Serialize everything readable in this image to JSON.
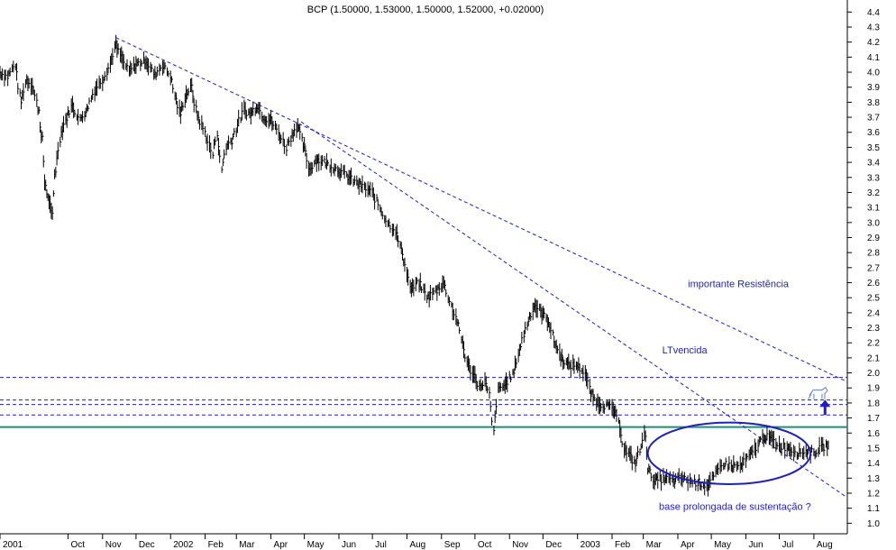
{
  "chart_data": {
    "type": "line",
    "title": "BCP (1.50000, 1.53000, 1.50000, 1.52000, +0.02000)",
    "xlabel": "",
    "ylabel": "",
    "grid": false,
    "y_axis_side": "right",
    "ylim": [
      0.93,
      4.48
    ],
    "yticks": [
      1.0,
      1.1,
      1.2,
      1.3,
      1.4,
      1.5,
      1.6,
      1.7,
      1.8,
      1.9,
      2.0,
      2.1,
      2.2,
      2.3,
      2.4,
      2.5,
      2.6,
      2.7,
      2.8,
      2.9,
      3.0,
      3.1,
      3.2,
      3.3,
      3.4,
      3.5,
      3.6,
      3.7,
      3.8,
      3.9,
      4.0,
      4.1,
      4.2,
      4.3,
      4.4
    ],
    "xlim": [
      "2001-08-01",
      "2003-08-31"
    ],
    "xticks": [
      {
        "label": "2001",
        "date": "2001-08-01"
      },
      {
        "label": "Oct",
        "date": "2001-10-01"
      },
      {
        "label": "Nov",
        "date": "2001-11-01"
      },
      {
        "label": "Dec",
        "date": "2001-12-01"
      },
      {
        "label": "2002",
        "date": "2002-01-01"
      },
      {
        "label": "Feb",
        "date": "2002-02-01"
      },
      {
        "label": "Mar",
        "date": "2002-03-01"
      },
      {
        "label": "Apr",
        "date": "2002-04-01"
      },
      {
        "label": "May",
        "date": "2002-05-01"
      },
      {
        "label": "Jun",
        "date": "2002-06-01"
      },
      {
        "label": "Jul",
        "date": "2002-07-01"
      },
      {
        "label": "Aug",
        "date": "2002-08-01"
      },
      {
        "label": "Sep",
        "date": "2002-09-01"
      },
      {
        "label": "Oct",
        "date": "2002-10-01"
      },
      {
        "label": "Nov",
        "date": "2002-11-01"
      },
      {
        "label": "Dec",
        "date": "2002-12-01"
      },
      {
        "label": "2003",
        "date": "2003-01-01"
      },
      {
        "label": "Feb",
        "date": "2003-02-01"
      },
      {
        "label": "Mar",
        "date": "2003-03-01"
      },
      {
        "label": "Apr",
        "date": "2003-04-01"
      },
      {
        "label": "May",
        "date": "2003-05-01"
      },
      {
        "label": "Jun",
        "date": "2003-06-01"
      },
      {
        "label": "Jul",
        "date": "2003-07-01"
      },
      {
        "label": "Aug",
        "date": "2003-08-01"
      }
    ],
    "series": [
      {
        "style": "ohlc-bars",
        "color": "#000000",
        "points": [
          [
            "2001-08-01",
            4.0
          ],
          [
            "2001-08-08",
            3.97
          ],
          [
            "2001-08-15",
            4.05
          ],
          [
            "2001-08-20",
            3.8
          ],
          [
            "2001-08-25",
            3.95
          ],
          [
            "2001-08-30",
            3.92
          ],
          [
            "2001-09-05",
            3.75
          ],
          [
            "2001-09-08",
            3.55
          ],
          [
            "2001-09-11",
            3.25
          ],
          [
            "2001-09-14",
            3.15
          ],
          [
            "2001-09-17",
            3.05
          ],
          [
            "2001-09-20",
            3.35
          ],
          [
            "2001-09-25",
            3.6
          ],
          [
            "2001-09-30",
            3.7
          ],
          [
            "2001-10-05",
            3.78
          ],
          [
            "2001-10-12",
            3.68
          ],
          [
            "2001-10-18",
            3.75
          ],
          [
            "2001-10-25",
            3.88
          ],
          [
            "2001-11-01",
            3.95
          ],
          [
            "2001-11-08",
            4.05
          ],
          [
            "2001-11-13",
            4.18
          ],
          [
            "2001-11-18",
            4.1
          ],
          [
            "2001-11-25",
            4.0
          ],
          [
            "2001-12-01",
            4.05
          ],
          [
            "2001-12-10",
            4.08
          ],
          [
            "2001-12-18",
            3.98
          ],
          [
            "2001-12-25",
            4.05
          ],
          [
            "2002-01-01",
            3.98
          ],
          [
            "2002-01-05",
            3.85
          ],
          [
            "2002-01-10",
            3.72
          ],
          [
            "2002-01-15",
            3.85
          ],
          [
            "2002-01-20",
            3.9
          ],
          [
            "2002-01-25",
            3.72
          ],
          [
            "2002-02-01",
            3.6
          ],
          [
            "2002-02-08",
            3.45
          ],
          [
            "2002-02-12",
            3.6
          ],
          [
            "2002-02-16",
            3.35
          ],
          [
            "2002-02-20",
            3.5
          ],
          [
            "2002-02-25",
            3.55
          ],
          [
            "2002-03-01",
            3.62
          ],
          [
            "2002-03-08",
            3.75
          ],
          [
            "2002-03-14",
            3.72
          ],
          [
            "2002-03-20",
            3.78
          ],
          [
            "2002-03-26",
            3.7
          ],
          [
            "2002-04-01",
            3.68
          ],
          [
            "2002-04-08",
            3.6
          ],
          [
            "2002-04-15",
            3.5
          ],
          [
            "2002-04-20",
            3.58
          ],
          [
            "2002-04-25",
            3.65
          ],
          [
            "2002-05-01",
            3.5
          ],
          [
            "2002-05-06",
            3.35
          ],
          [
            "2002-05-12",
            3.42
          ],
          [
            "2002-05-20",
            3.4
          ],
          [
            "2002-06-01",
            3.35
          ],
          [
            "2002-06-10",
            3.3
          ],
          [
            "2002-06-20",
            3.25
          ],
          [
            "2002-07-01",
            3.2
          ],
          [
            "2002-07-08",
            3.1
          ],
          [
            "2002-07-15",
            3.0
          ],
          [
            "2002-07-22",
            2.95
          ],
          [
            "2002-07-28",
            2.8
          ],
          [
            "2002-08-05",
            2.55
          ],
          [
            "2002-08-12",
            2.6
          ],
          [
            "2002-08-20",
            2.5
          ],
          [
            "2002-08-28",
            2.55
          ],
          [
            "2002-09-03",
            2.6
          ],
          [
            "2002-09-10",
            2.45
          ],
          [
            "2002-09-15",
            2.35
          ],
          [
            "2002-09-20",
            2.2
          ],
          [
            "2002-09-25",
            2.05
          ],
          [
            "2002-10-01",
            1.98
          ],
          [
            "2002-10-06",
            1.9
          ],
          [
            "2002-10-10",
            1.95
          ],
          [
            "2002-10-14",
            1.85
          ],
          [
            "2002-10-18",
            1.6
          ],
          [
            "2002-10-22",
            1.88
          ],
          [
            "2002-10-28",
            1.92
          ],
          [
            "2002-11-05",
            2.0
          ],
          [
            "2002-11-10",
            2.15
          ],
          [
            "2002-11-18",
            2.35
          ],
          [
            "2002-11-24",
            2.45
          ],
          [
            "2002-11-30",
            2.4
          ],
          [
            "2002-12-06",
            2.35
          ],
          [
            "2002-12-12",
            2.2
          ],
          [
            "2002-12-18",
            2.1
          ],
          [
            "2002-12-24",
            2.05
          ],
          [
            "2003-01-01",
            2.05
          ],
          [
            "2003-01-08",
            2.0
          ],
          [
            "2003-01-14",
            1.85
          ],
          [
            "2003-01-20",
            1.8
          ],
          [
            "2003-01-28",
            1.78
          ],
          [
            "2003-02-03",
            1.75
          ],
          [
            "2003-02-08",
            1.65
          ],
          [
            "2003-02-12",
            1.5
          ],
          [
            "2003-02-17",
            1.45
          ],
          [
            "2003-02-22",
            1.4
          ],
          [
            "2003-02-26",
            1.48
          ],
          [
            "2003-03-03",
            1.6
          ],
          [
            "2003-03-06",
            1.35
          ],
          [
            "2003-03-12",
            1.28
          ],
          [
            "2003-03-20",
            1.3
          ],
          [
            "2003-03-28",
            1.28
          ],
          [
            "2003-04-05",
            1.3
          ],
          [
            "2003-04-12",
            1.28
          ],
          [
            "2003-04-20",
            1.27
          ],
          [
            "2003-04-28",
            1.25
          ],
          [
            "2003-05-05",
            1.32
          ],
          [
            "2003-05-12",
            1.4
          ],
          [
            "2003-05-20",
            1.38
          ],
          [
            "2003-05-28",
            1.38
          ],
          [
            "2003-06-05",
            1.45
          ],
          [
            "2003-06-12",
            1.52
          ],
          [
            "2003-06-18",
            1.58
          ],
          [
            "2003-06-24",
            1.56
          ],
          [
            "2003-07-01",
            1.52
          ],
          [
            "2003-07-10",
            1.5
          ],
          [
            "2003-07-18",
            1.47
          ],
          [
            "2003-07-25",
            1.48
          ],
          [
            "2003-08-01",
            1.47
          ],
          [
            "2003-08-08",
            1.5
          ],
          [
            "2003-08-14",
            1.52
          ]
        ]
      }
    ],
    "lines": [
      {
        "kind": "trendline",
        "style": "dashed",
        "color": "#1f1fbf",
        "points": [
          [
            "2001-11-13",
            4.23
          ],
          [
            "2003-08-31",
            1.94
          ]
        ]
      },
      {
        "kind": "trendline",
        "style": "dashed",
        "color": "#1f1fbf",
        "points": [
          [
            "2002-04-28",
            3.67
          ],
          [
            "2003-08-31",
            1.17
          ]
        ]
      },
      {
        "kind": "horizontal",
        "style": "dashed",
        "color": "#1f1fbf",
        "value": 1.97
      },
      {
        "kind": "horizontal",
        "style": "dashed",
        "color": "#1f1fbf",
        "value": 1.82
      },
      {
        "kind": "horizontal",
        "style": "dashed",
        "color": "#1f1fbf",
        "value": 1.79
      },
      {
        "kind": "horizontal",
        "style": "dashed",
        "color": "#1f1fbf",
        "value": 1.72
      },
      {
        "kind": "horizontal",
        "style": "solid",
        "color": "#1f8f6f",
        "value": 1.64
      }
    ],
    "annotations": [
      {
        "text": "importante Resistência",
        "x": "2003-04-10",
        "y": 2.57
      },
      {
        "text": "LTvencida",
        "x": "2003-03-18",
        "y": 2.13
      },
      {
        "text": "base prolongada de sustentação ?",
        "x": "2003-03-15",
        "y": 1.09
      }
    ],
    "ellipse": {
      "color": "#1f1fbf",
      "center": [
        "2003-05-17",
        1.465
      ],
      "rx_days": 73,
      "ry": 0.205
    },
    "arrow": {
      "color": "#1f1fbf",
      "x": "2003-08-11",
      "from": 1.72,
      "to": 1.81,
      "direction": "up"
    },
    "bull_icon": {
      "color": "#5a7fd0",
      "x": "2003-07-28",
      "y": 1.85
    }
  }
}
